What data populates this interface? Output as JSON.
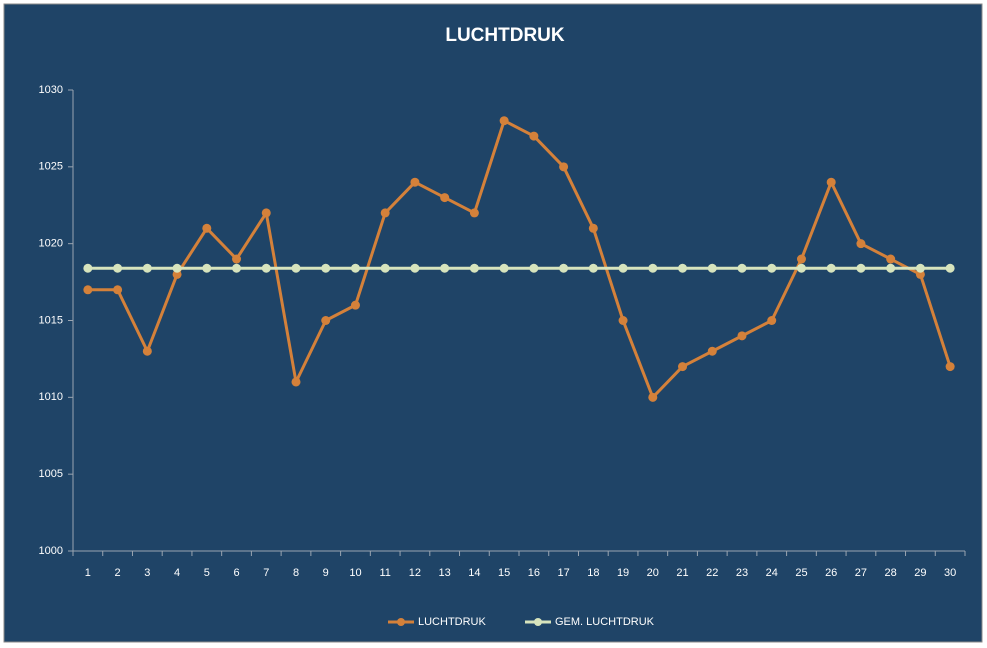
{
  "chart_data": {
    "type": "line",
    "title": "LUCHTDRUK",
    "categories": [
      "1",
      "2",
      "3",
      "4",
      "5",
      "6",
      "7",
      "8",
      "9",
      "10",
      "11",
      "12",
      "13",
      "14",
      "15",
      "16",
      "17",
      "18",
      "19",
      "20",
      "21",
      "22",
      "23",
      "24",
      "25",
      "26",
      "27",
      "28",
      "29",
      "30"
    ],
    "series": [
      {
        "name": "LUCHTDRUK",
        "color": "#d4813a",
        "values": [
          1017,
          1017,
          1013,
          1018,
          1021,
          1019,
          1022,
          1011,
          1015,
          1016,
          1022,
          1024,
          1023,
          1022,
          1028,
          1027,
          1025,
          1021,
          1015,
          1010,
          1012,
          1013,
          1014,
          1015,
          1019,
          1024,
          1020,
          1019,
          1018,
          1012
        ]
      },
      {
        "name": "GEM. LUCHTDRUK",
        "color": "#d7e4bd",
        "values": [
          1018.4,
          1018.4,
          1018.4,
          1018.4,
          1018.4,
          1018.4,
          1018.4,
          1018.4,
          1018.4,
          1018.4,
          1018.4,
          1018.4,
          1018.4,
          1018.4,
          1018.4,
          1018.4,
          1018.4,
          1018.4,
          1018.4,
          1018.4,
          1018.4,
          1018.4,
          1018.4,
          1018.4,
          1018.4,
          1018.4,
          1018.4,
          1018.4,
          1018.4,
          1018.4
        ]
      }
    ],
    "ylim": [
      1000,
      1030
    ],
    "yticks": [
      1000,
      1005,
      1010,
      1015,
      1020,
      1025,
      1030
    ],
    "grid": false,
    "legend": "bottom"
  }
}
